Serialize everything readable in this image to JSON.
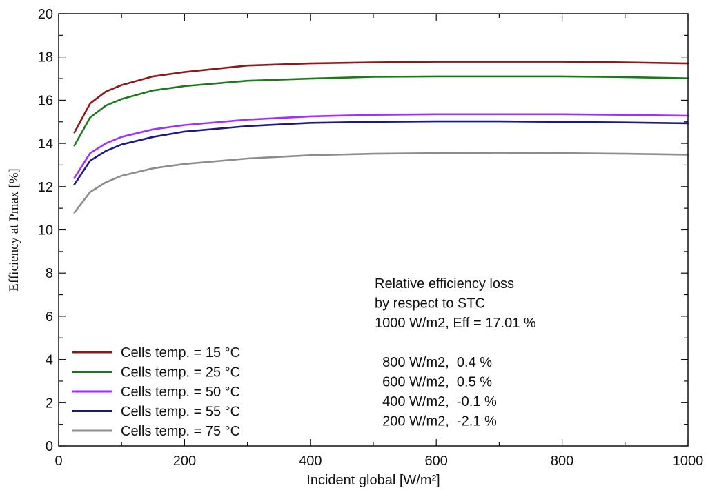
{
  "chart_data": {
    "type": "line",
    "xlabel": "Incident global [W/m²]",
    "ylabel": "Efficiency at Pmax [%]",
    "xlim": [
      0,
      1000
    ],
    "ylim": [
      0,
      20
    ],
    "xticks": [
      0,
      200,
      400,
      600,
      800,
      1000
    ],
    "yticks": [
      0,
      2,
      4,
      6,
      8,
      10,
      12,
      14,
      16,
      18,
      20
    ],
    "x": [
      25,
      50,
      75,
      100,
      150,
      200,
      300,
      400,
      500,
      600,
      700,
      800,
      900,
      1000
    ],
    "series": [
      {
        "name": "Cells temp. = 15 °C",
        "color": "#8b1a1a",
        "values": [
          14.5,
          15.85,
          16.4,
          16.7,
          17.1,
          17.3,
          17.6,
          17.7,
          17.75,
          17.78,
          17.78,
          17.78,
          17.75,
          17.7
        ]
      },
      {
        "name": "Cells temp. = 25 °C",
        "color": "#1a7a1a",
        "values": [
          13.9,
          15.2,
          15.75,
          16.05,
          16.45,
          16.65,
          16.9,
          17.0,
          17.08,
          17.1,
          17.1,
          17.1,
          17.07,
          17.01
        ]
      },
      {
        "name": "Cells temp. = 50 °C",
        "color": "#9b30ff",
        "values": [
          12.4,
          13.55,
          14.0,
          14.3,
          14.65,
          14.85,
          15.1,
          15.25,
          15.32,
          15.35,
          15.35,
          15.35,
          15.32,
          15.28
        ]
      },
      {
        "name": "Cells temp. = 55 °C",
        "color": "#1a1a80",
        "values": [
          12.1,
          13.2,
          13.65,
          13.95,
          14.3,
          14.55,
          14.8,
          14.95,
          15.0,
          15.02,
          15.02,
          15.0,
          14.97,
          14.93
        ]
      },
      {
        "name": "Cells temp. = 75 °C",
        "color": "#8c8c8c",
        "values": [
          10.8,
          11.75,
          12.2,
          12.5,
          12.85,
          13.05,
          13.3,
          13.45,
          13.52,
          13.55,
          13.57,
          13.55,
          13.52,
          13.48
        ]
      }
    ],
    "grid": false,
    "legend_position": "bottom-left",
    "annotation": {
      "lines": [
        "Relative efficiency loss",
        "by respect to STC",
        "1000 W/m2, Eff = 17.01 %",
        "",
        "  800 W/m2,  0.4 %",
        "  600 W/m2,  0.5 %",
        "  400 W/m2,  -0.1 %",
        "  200 W/m2,  -2.1 %"
      ]
    }
  }
}
